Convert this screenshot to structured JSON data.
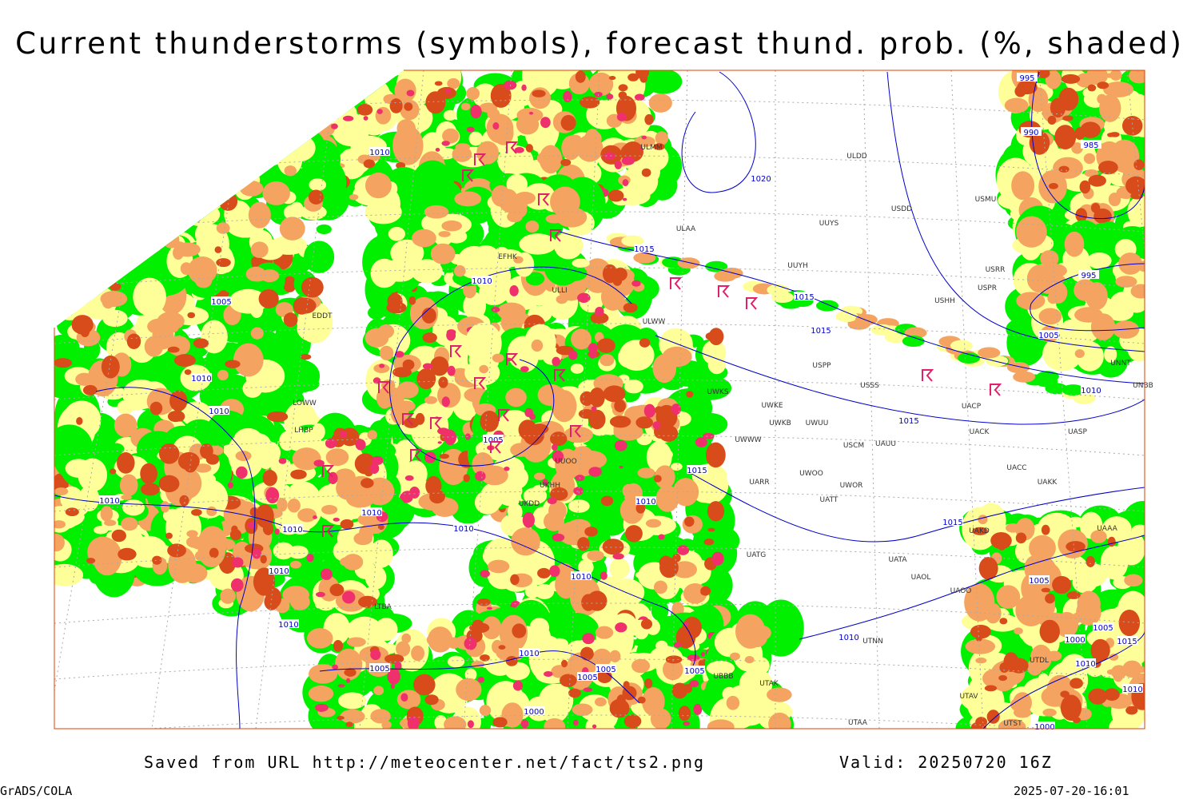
{
  "header": {
    "title": "Current thunderstorms (symbols), forecast thund. prob. (%, shaded)"
  },
  "footer": {
    "source": "Saved from URL http://meteocenter.net/fact/ts2.png",
    "valid": "Valid: 20250720 16Z",
    "software": "GrADS/COLA",
    "timestamp": "2025-07-20-16:01"
  },
  "isobar_labels": [
    "995",
    "990",
    "985",
    "995",
    "1005",
    "1010",
    "1015",
    "1015",
    "1010",
    "1005",
    "1005",
    "1000",
    "1015",
    "1010",
    "1010",
    "1000",
    "1020",
    "1015",
    "1015",
    "1015",
    "1015",
    "1010",
    "1005",
    "1010",
    "1010",
    "1010",
    "1010",
    "1010",
    "1010",
    "1010",
    "1010",
    "1010",
    "1005",
    "1010",
    "1010",
    "1010",
    "1005",
    "1005",
    "1005",
    "1005",
    "1000"
  ],
  "stations": [
    "ULMM",
    "ULDD",
    "USDD",
    "USMU",
    "ULAA",
    "UUYS",
    "UUYH",
    "EFHK",
    "ULLI",
    "ULWW",
    "USHH",
    "USPR",
    "USRR",
    "UNNT",
    "UNBB",
    "USSS",
    "UWKS",
    "UWKE",
    "UWKB",
    "UWUU",
    "UWWW",
    "USCM",
    "UAUU",
    "UACP",
    "UACK",
    "UASP",
    "UACC",
    "UAKK",
    "UWOO",
    "UWOR",
    "UARR",
    "UATT",
    "UAKD",
    "UATG",
    "UATA",
    "UAOL",
    "UAOO",
    "UTNN",
    "UBBB",
    "UTAK",
    "UTAA",
    "UTAV",
    "UTST",
    "UTDL",
    "UAAA",
    "LHBP",
    "EDDT",
    "LOWW",
    "UKHH",
    "UKDD",
    "LTBA",
    "USPP",
    "UUOO"
  ]
}
